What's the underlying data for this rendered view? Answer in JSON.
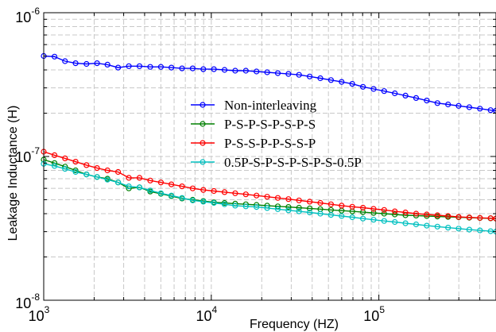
{
  "chart_data": {
    "type": "line",
    "xlabel": "Frequency (HZ)",
    "ylabel": "Leakage Inductance (H)",
    "xscale": "log",
    "yscale": "log",
    "xlim": [
      1000,
      500000
    ],
    "ylim": [
      1e-08,
      1e-06
    ],
    "grid": true,
    "legend_position": "center-right",
    "x_tick_labels": [
      {
        "base": "10",
        "exp": "3",
        "value": 1000
      },
      {
        "base": "10",
        "exp": "4",
        "value": 10000
      },
      {
        "base": "10",
        "exp": "5",
        "value": 100000
      }
    ],
    "y_tick_labels": [
      {
        "base": "10",
        "exp": "-8",
        "value": 1e-08
      },
      {
        "base": "10",
        "exp": "-7",
        "value": 1e-07
      },
      {
        "base": "10",
        "exp": "-6",
        "value": 1e-06
      }
    ],
    "x": [
      1000,
      1160,
      1340,
      1550,
      1800,
      2080,
      2400,
      2780,
      3220,
      3730,
      4320,
      5000,
      5780,
      6690,
      7740,
      8960,
      10370,
      12000,
      13890,
      16080,
      18610,
      21540,
      24930,
      28860,
      33400,
      38660,
      44750,
      51800,
      59950,
      69390,
      80320,
      92970,
      107600,
      124500,
      144100,
      166800,
      193100,
      223500,
      258700,
      299400,
      346600,
      401200,
      464200,
      500000
    ],
    "series": [
      {
        "name": "Non-interleaving",
        "color": "#0000ff",
        "values": [
          5e-07,
          4.95e-07,
          4.6e-07,
          4.45e-07,
          4.4e-07,
          4.45e-07,
          4.35e-07,
          4.15e-07,
          4.25e-07,
          4.25e-07,
          4.2e-07,
          4.2e-07,
          4.15e-07,
          4.1e-07,
          4.1e-07,
          4.05e-07,
          4.05e-07,
          4e-07,
          3.95e-07,
          3.95e-07,
          3.9e-07,
          3.85e-07,
          3.8e-07,
          3.75e-07,
          3.7e-07,
          3.6e-07,
          3.5e-07,
          3.4e-07,
          3.3e-07,
          3.2e-07,
          3.05e-07,
          2.95e-07,
          2.85e-07,
          2.75e-07,
          2.65e-07,
          2.55e-07,
          2.45e-07,
          2.35e-07,
          2.3e-07,
          2.25e-07,
          2.2e-07,
          2.15e-07,
          2.1e-07,
          2.08e-07
        ]
      },
      {
        "name": "P-S-P-S-P-S-P-S",
        "color": "#008000",
        "values": [
          9.5e-08,
          9e-08,
          8.5e-08,
          8e-08,
          7.5e-08,
          7.2e-08,
          7e-08,
          6.6e-08,
          6e-08,
          6.1e-08,
          5.7e-08,
          5.5e-08,
          5.3e-08,
          5.1e-08,
          5e-08,
          4.9e-08,
          4.8e-08,
          4.75e-08,
          4.7e-08,
          4.65e-08,
          4.6e-08,
          4.55e-08,
          4.5e-08,
          4.45e-08,
          4.4e-08,
          4.35e-08,
          4.3e-08,
          4.25e-08,
          4.2e-08,
          4.15e-08,
          4.1e-08,
          4.05e-08,
          4e-08,
          3.95e-08,
          3.9e-08,
          3.88e-08,
          3.85e-08,
          3.82e-08,
          3.8e-08,
          3.78e-08,
          3.75e-08,
          3.73e-08,
          3.71e-08,
          3.7e-08
        ]
      },
      {
        "name": "P-S-S-P-P-S-S-P",
        "color": "#ff0000",
        "values": [
          1.08e-07,
          1.02e-07,
          9.7e-08,
          9.2e-08,
          8.7e-08,
          8.3e-08,
          8e-08,
          7.8e-08,
          7.1e-08,
          7.1e-08,
          6.8e-08,
          6.6e-08,
          6.4e-08,
          6.2e-08,
          6e-08,
          5.85e-08,
          5.75e-08,
          5.65e-08,
          5.55e-08,
          5.45e-08,
          5.35e-08,
          5.25e-08,
          5.15e-08,
          5.05e-08,
          4.95e-08,
          4.85e-08,
          4.75e-08,
          4.65e-08,
          4.55e-08,
          4.47e-08,
          4.4e-08,
          4.32e-08,
          4.25e-08,
          4.15e-08,
          4.08e-08,
          4e-08,
          3.95e-08,
          3.9e-08,
          3.85e-08,
          3.8e-08,
          3.77e-08,
          3.74e-08,
          3.72e-08,
          3.7e-08
        ]
      },
      {
        "name": "0.5P-S-P-S-P-S-P-S-0.5P",
        "color": "#00c0c0",
        "values": [
          8.9e-08,
          8.6e-08,
          8.2e-08,
          7.8e-08,
          7.5e-08,
          7.2e-08,
          6.9e-08,
          6.6e-08,
          6.2e-08,
          6.1e-08,
          5.8e-08,
          5.55e-08,
          5.35e-08,
          5.15e-08,
          4.95e-08,
          4.85e-08,
          4.75e-08,
          4.65e-08,
          4.55e-08,
          4.5e-08,
          4.45e-08,
          4.38e-08,
          4.3e-08,
          4.22e-08,
          4.15e-08,
          4.08e-08,
          4e-08,
          3.92e-08,
          3.85e-08,
          3.78e-08,
          3.7e-08,
          3.63e-08,
          3.56e-08,
          3.5e-08,
          3.43e-08,
          3.37e-08,
          3.3e-08,
          3.25e-08,
          3.2e-08,
          3.15e-08,
          3.1e-08,
          3.06e-08,
          3.02e-08,
          3e-08
        ]
      }
    ]
  }
}
